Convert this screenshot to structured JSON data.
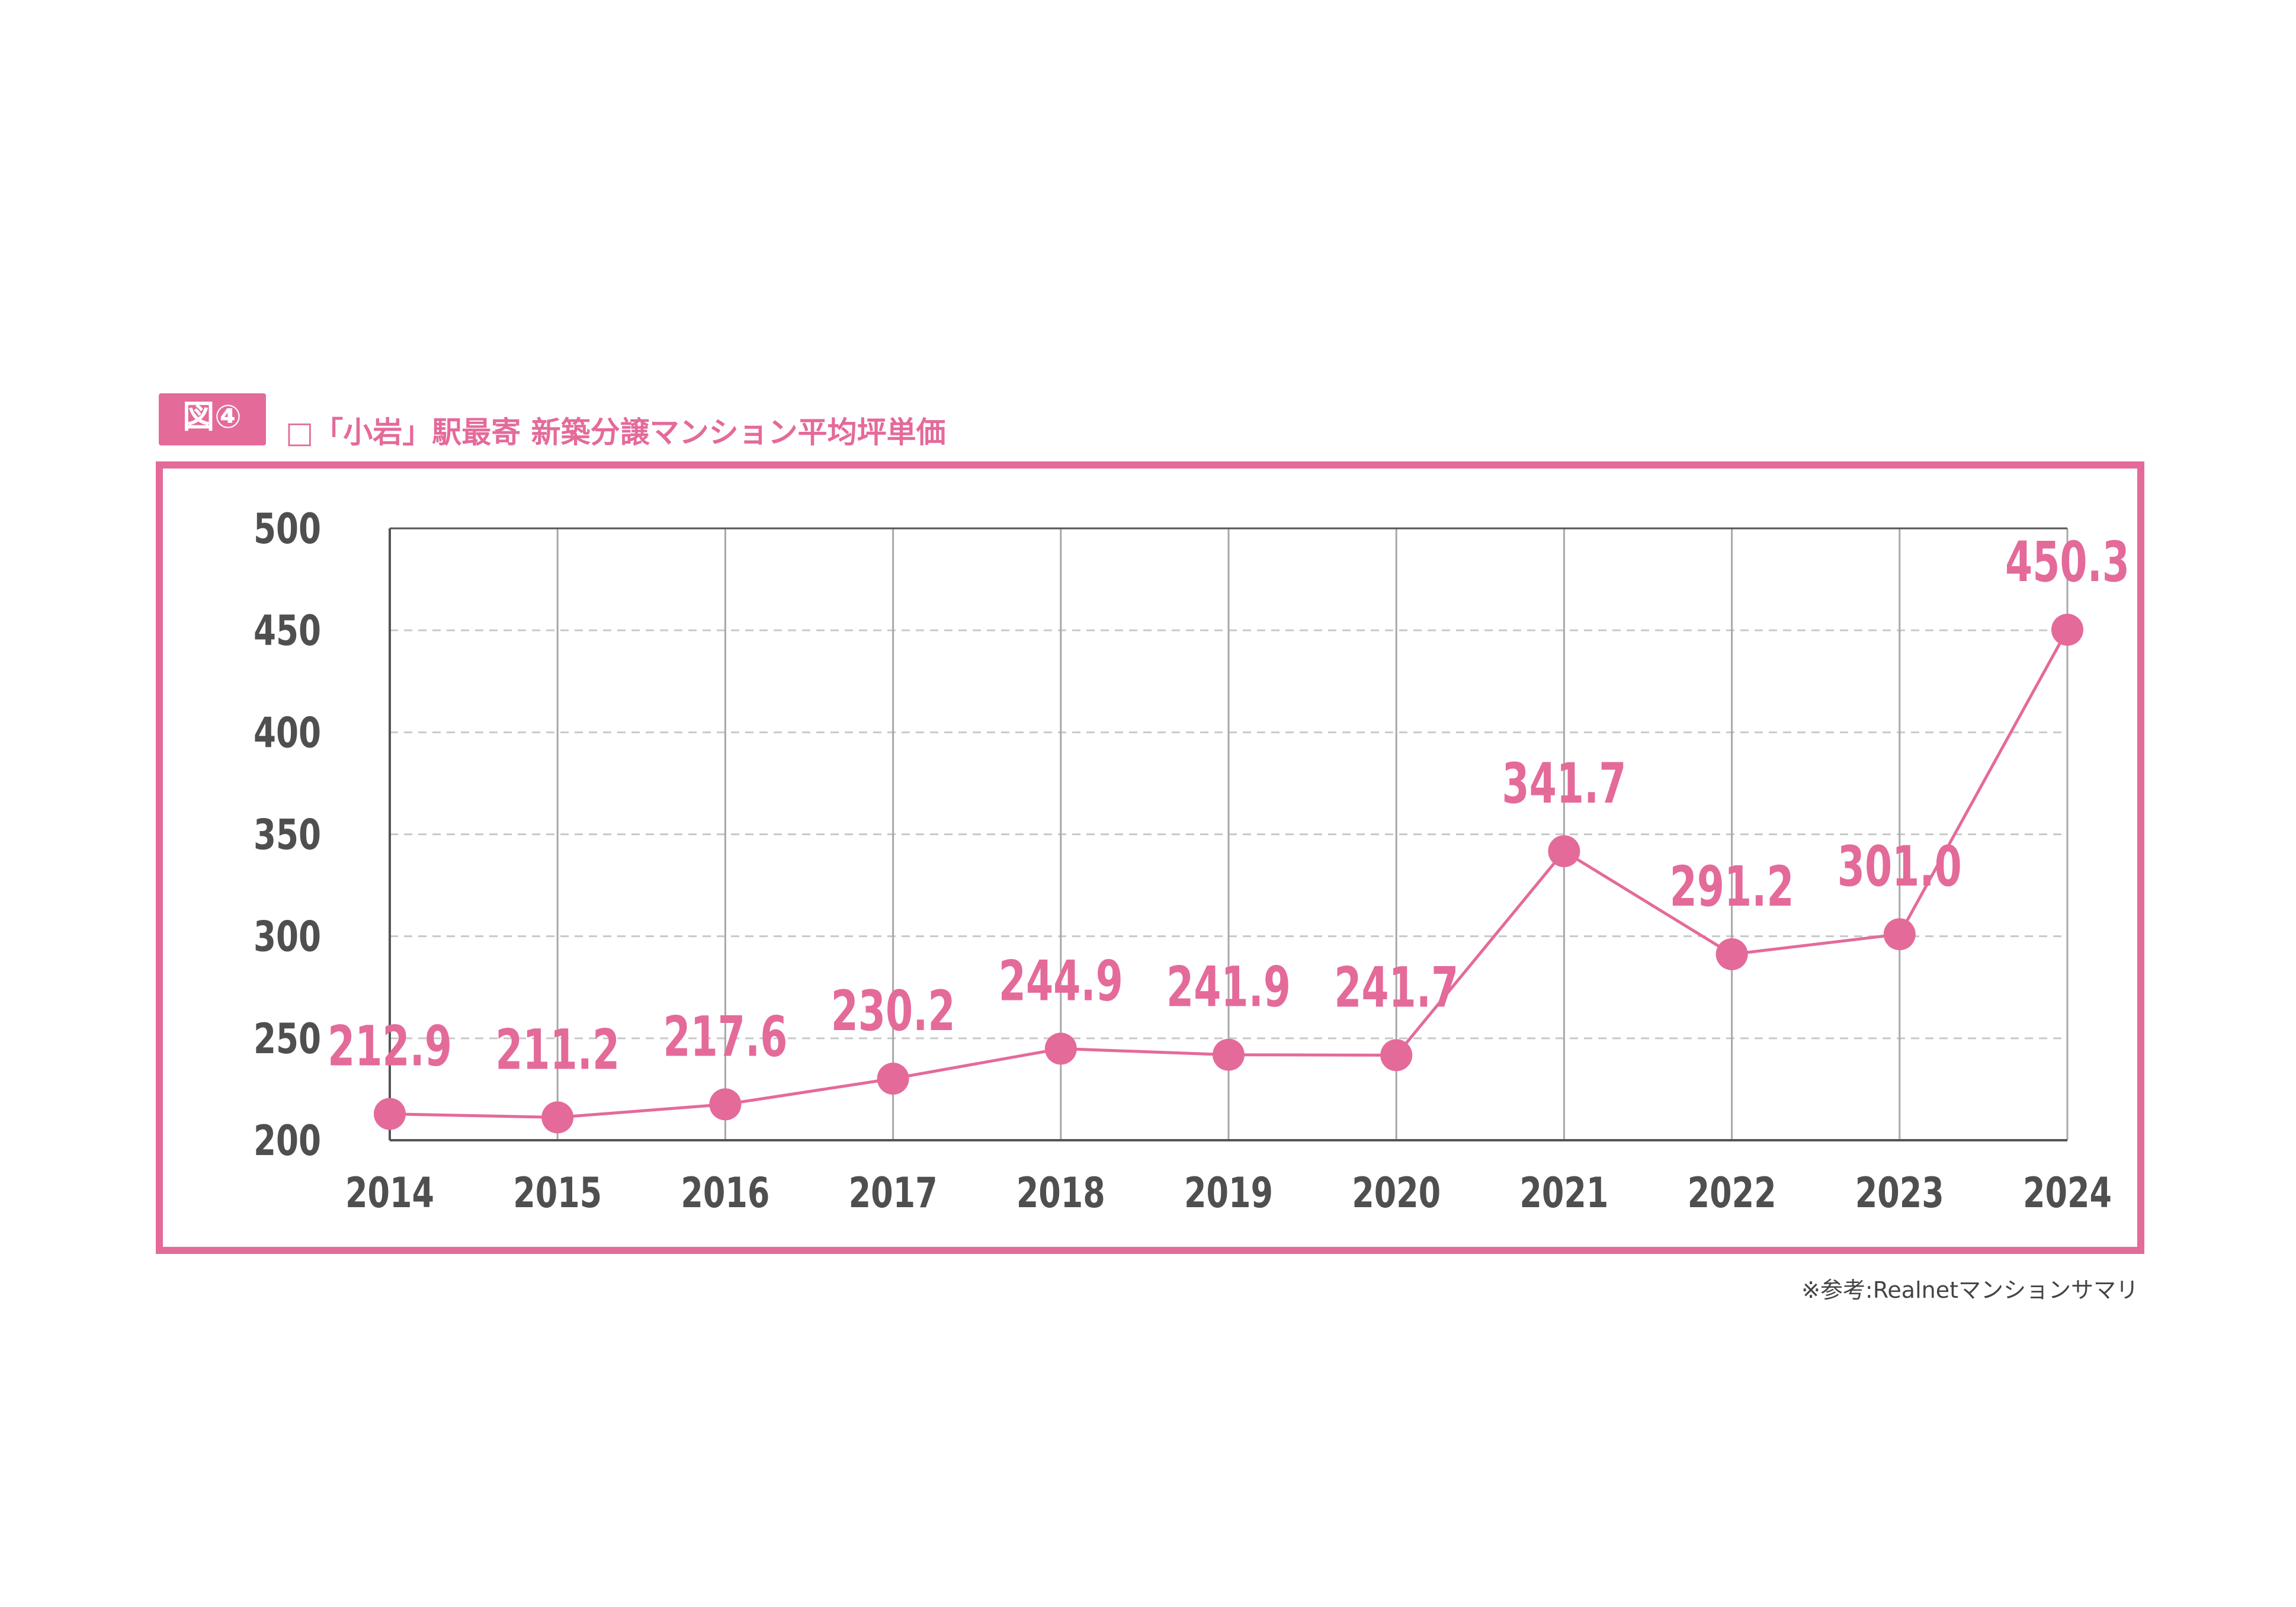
{
  "figure": {
    "badge": "図④",
    "title": "□「小岩」駅最寄 新築分譲マンション平均坪単価",
    "source": "※参考:Realnetマンションサマリ"
  },
  "colors": {
    "accent": "#e46a9a",
    "text": "#4f4f4f",
    "grid": "#c9c9c9",
    "axis": "#555555"
  },
  "chart_data": {
    "type": "line",
    "title": "□「小岩」駅最寄 新築分譲マンション平均坪単価",
    "categories": [
      "2014",
      "2015",
      "2016",
      "2017",
      "2018",
      "2019",
      "2020",
      "2021",
      "2022",
      "2023",
      "2024"
    ],
    "values": [
      212.9,
      211.2,
      217.6,
      230.2,
      244.9,
      241.9,
      241.7,
      341.7,
      291.2,
      301.0,
      450.3
    ],
    "value_labels": [
      "212.9",
      "211.2",
      "217.6",
      "230.2",
      "244.9",
      "241.9",
      "241.7",
      "341.7",
      "291.2",
      "301.0",
      "450.3"
    ],
    "y_ticks": [
      200,
      250,
      300,
      350,
      400,
      450,
      500
    ],
    "ylim": [
      200,
      500
    ],
    "xlabel": "",
    "ylabel": "",
    "grid": true,
    "legend": "none"
  }
}
